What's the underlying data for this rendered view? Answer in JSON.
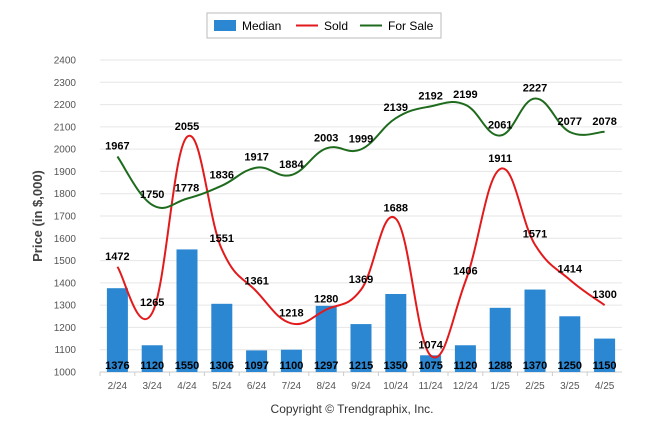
{
  "chart_data": {
    "type": "bar+line",
    "categories": [
      "2/24",
      "3/24",
      "4/24",
      "5/24",
      "6/24",
      "7/24",
      "8/24",
      "9/24",
      "10/24",
      "11/24",
      "12/24",
      "1/25",
      "2/25",
      "3/25",
      "4/25"
    ],
    "series": [
      {
        "name": "Median",
        "kind": "bar",
        "color": "#2b87d1",
        "values": [
          1376,
          1120,
          1550,
          1306,
          1097,
          1100,
          1297,
          1215,
          1350,
          1075,
          1120,
          1288,
          1370,
          1250,
          1150
        ]
      },
      {
        "name": "Sold",
        "kind": "line",
        "color": "#e31a1c",
        "values": [
          1472,
          1265,
          2055,
          1551,
          1361,
          1218,
          1280,
          1369,
          1688,
          1074,
          1406,
          1911,
          1571,
          1414,
          1300
        ]
      },
      {
        "name": "For Sale",
        "kind": "line",
        "color": "#1e6b1e",
        "values": [
          1967,
          1750,
          1778,
          1836,
          1917,
          1884,
          2003,
          1999,
          2139,
          2192,
          2199,
          2061,
          2227,
          2077,
          2078
        ]
      }
    ],
    "ylabel": "Price (in $,000)",
    "xlabel": "",
    "ylim": [
      1000,
      2400
    ],
    "yticks": [
      1000,
      1100,
      1200,
      1300,
      1400,
      1500,
      1600,
      1700,
      1800,
      1900,
      2000,
      2100,
      2200,
      2300,
      2400
    ],
    "grid": true,
    "legend_position": "top-center"
  },
  "footer": {
    "copyright": "Copyright © Trendgraphix, Inc."
  }
}
